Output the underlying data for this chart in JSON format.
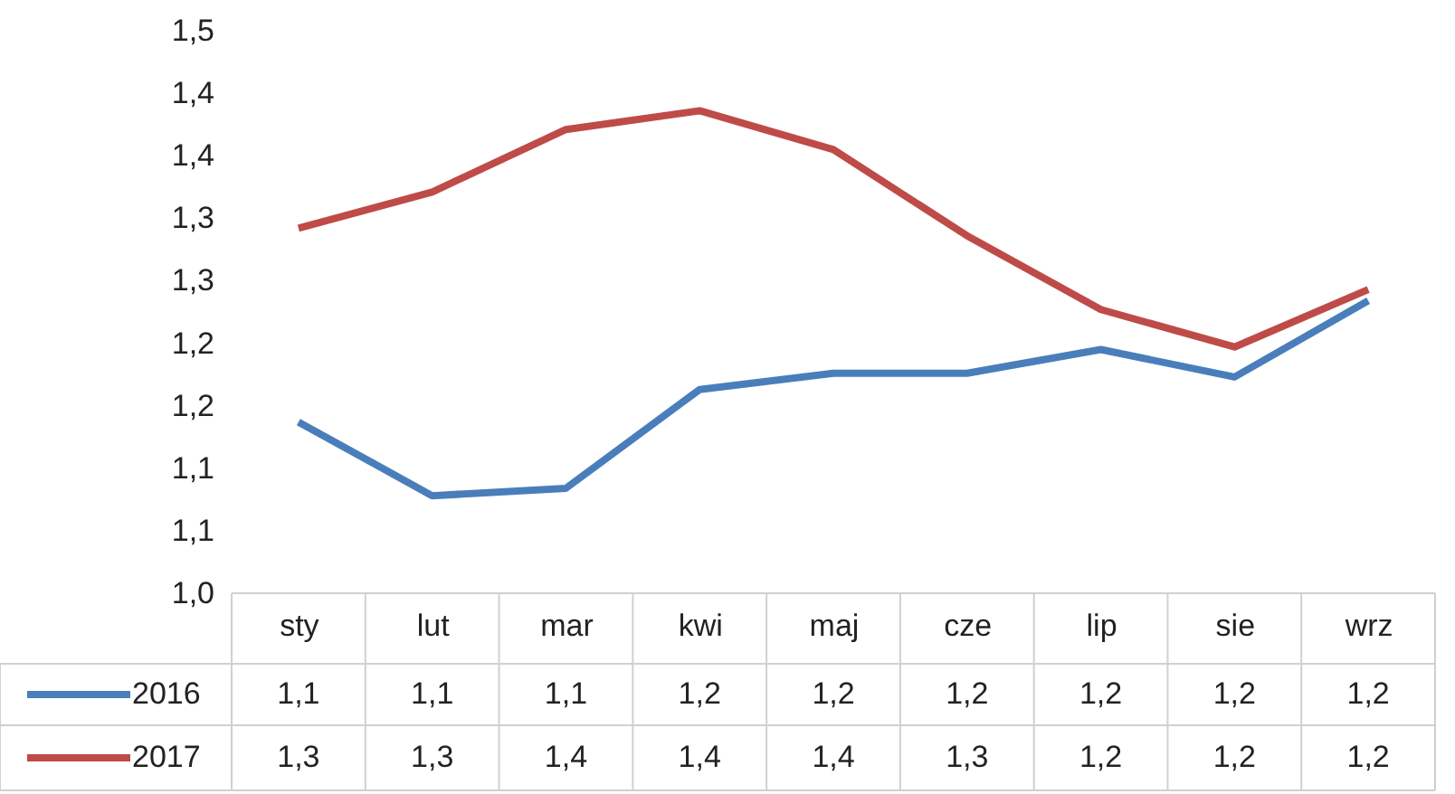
{
  "chart_data": {
    "type": "line",
    "categories": [
      "sty",
      "lut",
      "mar",
      "kwi",
      "maj",
      "cze",
      "lip",
      "sie",
      "wrz"
    ],
    "series": [
      {
        "name": "2016",
        "color": "#4a7ebb",
        "values": [
          1.137,
          1.078,
          1.084,
          1.163,
          1.176,
          1.176,
          1.195,
          1.173,
          1.234
        ],
        "value_labels": [
          "1,1",
          "1,1",
          "1,1",
          "1,2",
          "1,2",
          "1,2",
          "1,2",
          "1,2",
          "1,2"
        ]
      },
      {
        "name": "2017",
        "color": "#be4b48",
        "values": [
          1.292,
          1.321,
          1.371,
          1.386,
          1.355,
          1.286,
          1.227,
          1.197,
          1.243
        ],
        "value_labels": [
          "1,3",
          "1,3",
          "1,4",
          "1,4",
          "1,4",
          "1,3",
          "1,2",
          "1,2",
          "1,2"
        ]
      }
    ],
    "ylim": [
      1.0,
      1.45
    ],
    "yticks": [
      {
        "value": 1.0,
        "label": "1,0"
      },
      {
        "value": 1.05,
        "label": "1,1"
      },
      {
        "value": 1.1,
        "label": "1,1"
      },
      {
        "value": 1.15,
        "label": "1,2"
      },
      {
        "value": 1.2,
        "label": "1,2"
      },
      {
        "value": 1.25,
        "label": "1,3"
      },
      {
        "value": 1.3,
        "label": "1,3"
      },
      {
        "value": 1.35,
        "label": "1,4"
      },
      {
        "value": 1.4,
        "label": "1,4"
      },
      {
        "value": 1.45,
        "label": "1,5"
      }
    ],
    "grid": false,
    "legend": "bottom left",
    "line_style": "solid",
    "marker": "none"
  }
}
